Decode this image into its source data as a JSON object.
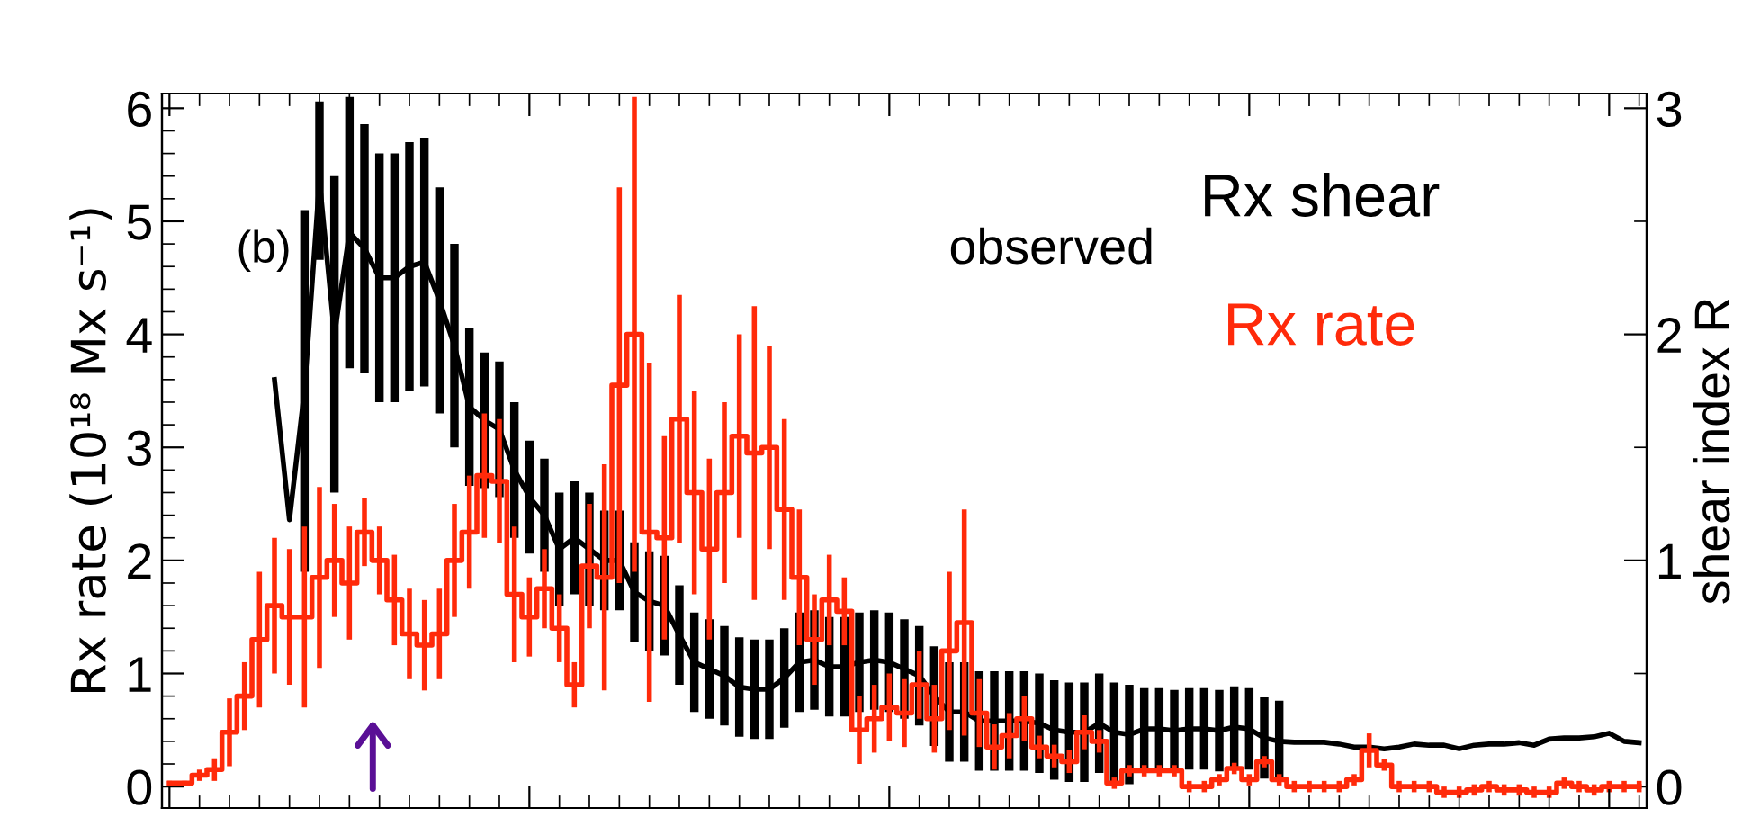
{
  "chart_data": {
    "type": "step",
    "ylabel": "Rx rate (10¹⁸ Mx s⁻¹)",
    "y2label": "shear index R",
    "categories": [
      null,
      null,
      null,
      null,
      null,
      null,
      null,
      null,
      null,
      null,
      null,
      null,
      null,
      null,
      null,
      null,
      null,
      null,
      null,
      null,
      null,
      null,
      null,
      null,
      null,
      null,
      null,
      null,
      null,
      null,
      null,
      null,
      null,
      null,
      null,
      null,
      null,
      null,
      null,
      null,
      null,
      null,
      null,
      null,
      null,
      null,
      null,
      null,
      null,
      null,
      null,
      null,
      null,
      null,
      null,
      null,
      null,
      null,
      null,
      null,
      null,
      null,
      null,
      null,
      null,
      null,
      null,
      null,
      null,
      null,
      null,
      null,
      null,
      null,
      null,
      null,
      null,
      null,
      null,
      null,
      null,
      null,
      null,
      null,
      null,
      null,
      null,
      null,
      null,
      null,
      null,
      null,
      null,
      null,
      null,
      null,
      null,
      null,
      null
    ],
    "ylim": [
      -0.19,
      6.13
    ],
    "yticks": [
      0,
      1,
      2,
      3,
      4,
      5,
      6
    ],
    "y2lim": [
      -0.095,
      3.065
    ],
    "y2ticks": [
      0,
      1,
      2,
      3
    ],
    "tick_labels": "y",
    "grid": false,
    "legend": "top right",
    "annotations": [
      "(b)",
      "observed"
    ],
    "series": [
      {
        "name": "Rx rate",
        "color": "#ff2a0a",
        "values": [
          0.03,
          0.03,
          0.1,
          0.15,
          0.48,
          0.8,
          1.3,
          1.6,
          1.5,
          1.5,
          1.85,
          2.0,
          1.8,
          2.25,
          2.0,
          1.65,
          1.35,
          1.25,
          1.35,
          2.0,
          2.25,
          2.75,
          2.7,
          1.7,
          1.5,
          1.75,
          1.4,
          0.9,
          1.95,
          1.85,
          3.55,
          4.0,
          2.25,
          2.2,
          3.25,
          2.6,
          2.1,
          2.6,
          3.1,
          2.95,
          3.0,
          2.45,
          1.85,
          1.3,
          1.65,
          1.55,
          0.5,
          0.6,
          0.7,
          0.65,
          0.9,
          0.6,
          1.2,
          1.45,
          0.65,
          0.35,
          0.45,
          0.6,
          0.35,
          0.27,
          0.22,
          0.48,
          0.4,
          0.03,
          0.14,
          0.14,
          0.14,
          0.14,
          0.0,
          0.0,
          0.06,
          0.16,
          0.06,
          0.22,
          0.06,
          0.0,
          0.0,
          0.0,
          0.0,
          0.06,
          0.32,
          0.19,
          0.0,
          0.0,
          0.0,
          -0.05,
          -0.05,
          -0.03,
          0.0,
          -0.03,
          -0.03,
          -0.05,
          -0.05,
          0.03,
          0.0,
          -0.03,
          0.0,
          0.0,
          0.0
        ],
        "errors": [
          0.02,
          0.02,
          0.05,
          0.1,
          0.3,
          0.3,
          0.6,
          0.6,
          0.6,
          0.8,
          0.8,
          0.5,
          0.5,
          0.3,
          0.3,
          0.4,
          0.4,
          0.4,
          0.4,
          0.5,
          0.5,
          0.55,
          0.55,
          0.6,
          0.35,
          0.35,
          0.3,
          0.2,
          0.55,
          1.0,
          1.75,
          2.1,
          1.5,
          0.9,
          1.1,
          0.9,
          0.8,
          0.8,
          0.9,
          1.3,
          0.9,
          0.8,
          0.6,
          0.4,
          0.4,
          0.3,
          0.3,
          0.3,
          0.3,
          0.3,
          0.3,
          0.3,
          0.7,
          1.0,
          0.3,
          0.2,
          0.2,
          0.2,
          0.1,
          0.1,
          0.1,
          0.15,
          0.1,
          0.05,
          0.05,
          0.05,
          0.05,
          0.05,
          0.05,
          0.05,
          0.05,
          0.05,
          0.05,
          0.05,
          0.05,
          0.05,
          0.05,
          0.05,
          0.05,
          0.05,
          0.15,
          0.05,
          0.05,
          0.05,
          0.05,
          0.05,
          0.05,
          0.05,
          0.05,
          0.05,
          0.05,
          0.05,
          0.05,
          0.05,
          0.05,
          0.05,
          0.05,
          0.05,
          0.05
        ]
      },
      {
        "name": "Rx shear",
        "type": "line",
        "axis": "y2",
        "color": "#000000",
        "values": [
          null,
          null,
          null,
          null,
          null,
          null,
          null,
          1.8,
          1.18,
          1.75,
          2.68,
          2.0,
          2.45,
          2.38,
          2.25,
          2.25,
          2.3,
          2.32,
          2.15,
          1.95,
          1.68,
          1.62,
          1.58,
          1.4,
          1.28,
          1.2,
          1.05,
          1.1,
          1.05,
          1.0,
          1.0,
          0.86,
          0.82,
          0.8,
          0.67,
          0.55,
          0.52,
          0.49,
          0.44,
          0.43,
          0.43,
          0.48,
          0.55,
          0.56,
          0.53,
          0.53,
          0.55,
          0.56,
          0.55,
          0.52,
          0.49,
          0.4,
          0.33,
          0.33,
          0.29,
          0.29,
          0.29,
          0.29,
          0.28,
          0.25,
          0.24,
          0.24,
          0.28,
          0.24,
          0.23,
          0.255,
          0.255,
          0.247,
          0.255,
          0.255,
          0.247,
          0.263,
          0.255,
          0.215,
          0.2,
          0.196,
          0.196,
          0.196,
          0.188,
          0.175,
          0.175,
          0.167,
          0.175,
          0.188,
          0.183,
          0.183,
          0.167,
          0.183,
          0.188,
          0.188,
          0.194,
          0.183,
          0.21,
          0.215,
          0.215,
          0.22,
          0.236,
          0.2,
          0.194
        ],
        "errors": [
          null,
          null,
          null,
          null,
          null,
          null,
          null,
          null,
          null,
          0.8,
          0.35,
          0.7,
          0.6,
          0.55,
          0.55,
          0.55,
          0.55,
          0.55,
          0.5,
          0.45,
          0.35,
          0.3,
          0.3,
          0.3,
          0.25,
          0.25,
          0.25,
          0.25,
          0.25,
          0.22,
          0.22,
          0.22,
          0.22,
          0.22,
          0.22,
          0.22,
          0.22,
          0.22,
          0.22,
          0.22,
          0.22,
          0.22,
          0.22,
          0.22,
          0.22,
          0.22,
          0.22,
          0.22,
          0.22,
          0.22,
          0.22,
          0.22,
          0.22,
          0.22,
          0.22,
          0.22,
          0.22,
          0.22,
          0.22,
          0.22,
          0.22,
          0.22,
          0.22,
          0.22,
          0.22,
          0.18,
          0.18,
          0.18,
          0.18,
          0.18,
          0.18,
          0.18,
          0.18,
          0.18,
          0.18,
          null,
          null,
          null,
          null,
          null,
          null,
          null,
          null,
          null,
          null,
          null,
          null,
          null,
          null,
          null,
          null,
          null,
          null,
          null,
          null,
          null,
          null,
          null,
          null
        ]
      }
    ]
  }
}
